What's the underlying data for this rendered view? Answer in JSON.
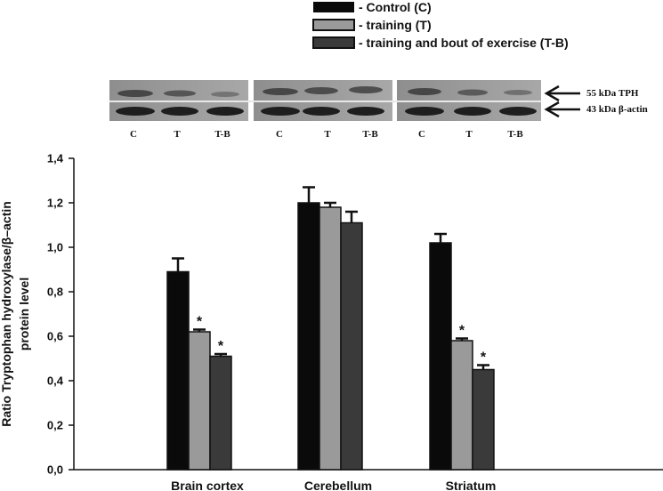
{
  "chart_data": {
    "type": "bar",
    "categories": [
      "Brain cortex",
      "Cerebellum",
      "Striatum"
    ],
    "series": [
      {
        "name": "- Control (C)",
        "values": [
          0.89,
          1.2,
          1.02
        ],
        "errors": [
          0.06,
          0.07,
          0.04
        ],
        "color": "#0a0a0a"
      },
      {
        "name": "- training (T)",
        "values": [
          0.62,
          1.18,
          0.58
        ],
        "errors": [
          0.01,
          0.02,
          0.01
        ],
        "color": "#9a9a9a"
      },
      {
        "name": "- training and bout of exercise (T-B)",
        "values": [
          0.51,
          1.11,
          0.45
        ],
        "errors": [
          0.01,
          0.05,
          0.02
        ],
        "color": "#3a3a3a"
      }
    ],
    "significance": [
      {
        "category": "Brain cortex",
        "series": "- training (T)",
        "label": "*"
      },
      {
        "category": "Brain cortex",
        "series": "- training and bout of exercise (T-B)",
        "label": "*"
      },
      {
        "category": "Striatum",
        "series": "- training (T)",
        "label": "*"
      },
      {
        "category": "Striatum",
        "series": "- training and bout of exercise (T-B)",
        "label": "*"
      }
    ],
    "ylabel_line1": "Ratio Tryptophan hydroxylase/β–actin",
    "ylabel_line2": "protein level",
    "ylim": [
      0,
      1.4
    ],
    "yticks": [
      "0,0",
      "0,2",
      "0,4",
      "0,6",
      "0,8",
      "1,0",
      "1,2",
      "1,4"
    ],
    "grid": false,
    "legend_position": "top-center"
  },
  "blot": {
    "lanes": [
      "C",
      "T",
      "T-B"
    ],
    "band_labels": [
      "55 kDa TPH",
      "43 kDa β-actin"
    ]
  }
}
